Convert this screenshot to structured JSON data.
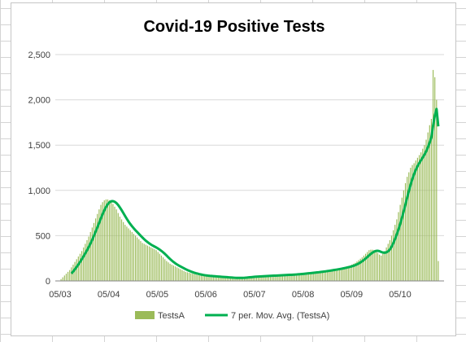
{
  "chart_data": {
    "type": "bar",
    "title": "Covid-19 Positive Tests",
    "ylim": [
      0,
      2500
    ],
    "y_ticks": [
      "0",
      "500",
      "1,000",
      "1,500",
      "2,000",
      "2,500"
    ],
    "x_ticks": [
      "05/03",
      "05/04",
      "05/05",
      "05/06",
      "05/07",
      "05/08",
      "05/09",
      "05/10"
    ],
    "grid": "horizontal",
    "legend_position": "bottom",
    "colors": {
      "bars": "#9bbb59",
      "line": "#00b050",
      "gridline": "#d9d9d9",
      "axis": "#868686"
    },
    "x_start_label": "05/03",
    "x_end_label": "05/10",
    "series": [
      {
        "name": "TestsA",
        "kind": "bar",
        "values": [
          20,
          40,
          60,
          80,
          100,
          120,
          150,
          180,
          210,
          240,
          270,
          300,
          330,
          370,
          410,
          450,
          490,
          540,
          590,
          640,
          690,
          740,
          790,
          840,
          870,
          890,
          900,
          900,
          890,
          870,
          850,
          820,
          790,
          750,
          710,
          680,
          650,
          620,
          600,
          580,
          560,
          540,
          520,
          500,
          480,
          460,
          440,
          420,
          410,
          400,
          390,
          380,
          370,
          360,
          350,
          340,
          320,
          300,
          280,
          260,
          240,
          220,
          205,
          190,
          180,
          170,
          160,
          150,
          140,
          130,
          120,
          110,
          100,
          95,
          90,
          85,
          80,
          75,
          70,
          65,
          60,
          60,
          58,
          56,
          55,
          54,
          52,
          50,
          48,
          46,
          45,
          44,
          43,
          42,
          40,
          38,
          36,
          35,
          34,
          33,
          32,
          32,
          33,
          34,
          36,
          38,
          40,
          42,
          44,
          46,
          48,
          49,
          50,
          51,
          52,
          53,
          54,
          55,
          56,
          57,
          58,
          59,
          60,
          61,
          62,
          63,
          64,
          65,
          66,
          67,
          68,
          69,
          70,
          71,
          72,
          74,
          76,
          78,
          80,
          82,
          84,
          86,
          88,
          90,
          92,
          94,
          96,
          98,
          100,
          103,
          106,
          109,
          112,
          115,
          118,
          121,
          124,
          127,
          130,
          134,
          138,
          142,
          146,
          150,
          155,
          160,
          165,
          170,
          180,
          190,
          200,
          215,
          230,
          245,
          260,
          280,
          300,
          320,
          340,
          345,
          345,
          340,
          330,
          310,
          290,
          280,
          300,
          330,
          370,
          410,
          450,
          500,
          560,
          620,
          680,
          760,
          840,
          920,
          1000,
          1080,
          1150,
          1200,
          1250,
          1280,
          1300,
          1330,
          1360,
          1390,
          1420,
          1460,
          1500,
          1560,
          1640,
          1720,
          1790,
          2330,
          2250,
          2000,
          220
        ]
      },
      {
        "name": "7 per. Mov. Avg. (TestsA)",
        "kind": "line"
      }
    ]
  }
}
